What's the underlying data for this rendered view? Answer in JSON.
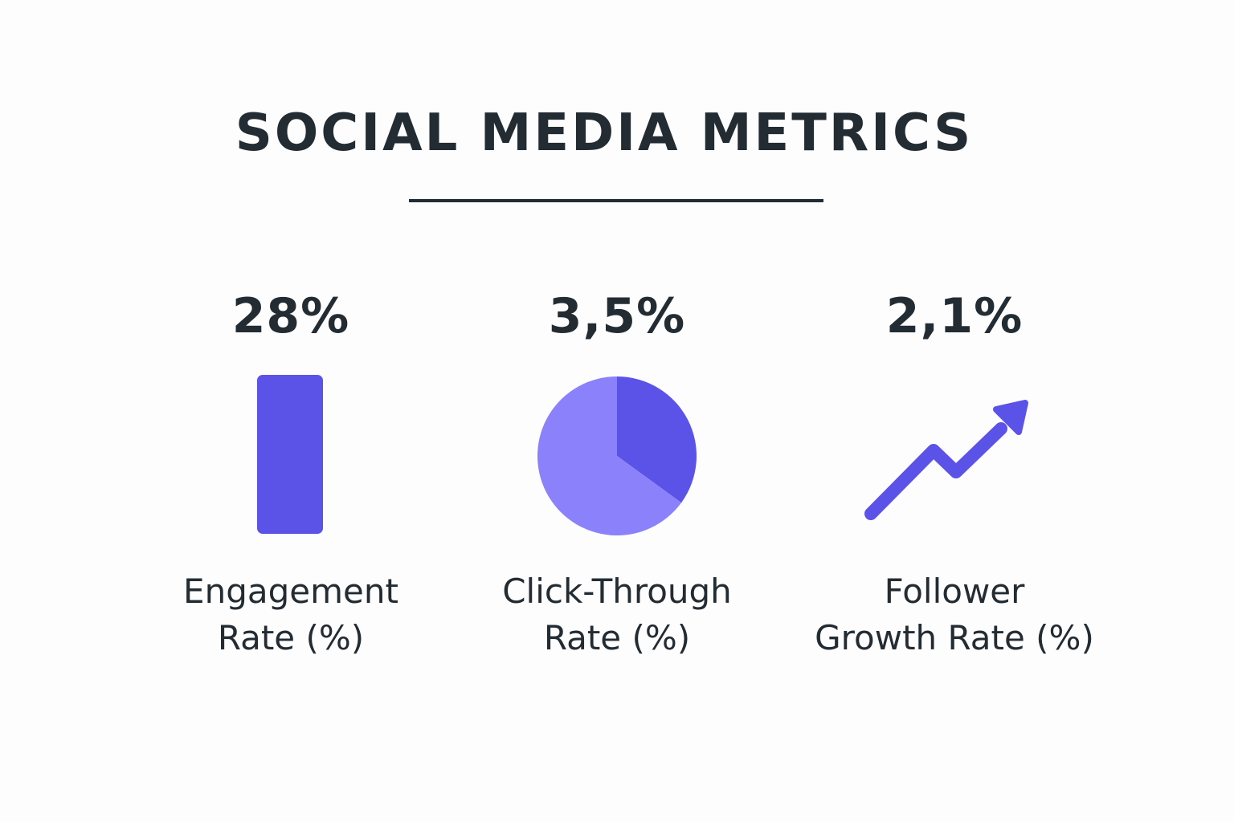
{
  "title": "SOCIAL MEDIA METRICS",
  "colors": {
    "text": "#242c33",
    "primary": "#5b53e8",
    "secondary": "#8b82fb",
    "background": "#fdfdfd"
  },
  "chart_data": [
    {
      "type": "bar",
      "value_label": "28%",
      "value": 28,
      "label_lines": [
        "Engagement",
        "Rate (%)"
      ],
      "icon": "bar-icon"
    },
    {
      "type": "pie",
      "value_label": "3,5%",
      "value": 3.5,
      "slices": [
        {
          "fraction": 0.35,
          "color": "#5b53e8"
        },
        {
          "fraction": 0.65,
          "color": "#8b82fb"
        }
      ],
      "label_lines": [
        "Click-Through",
        "Rate (%)"
      ],
      "icon": "pie-icon"
    },
    {
      "type": "line",
      "value_label": "2,1%",
      "value": 2.1,
      "trend": "up",
      "label_lines": [
        "Follower",
        "Growth Rate (%)"
      ],
      "icon": "trend-up-arrow-icon"
    }
  ]
}
